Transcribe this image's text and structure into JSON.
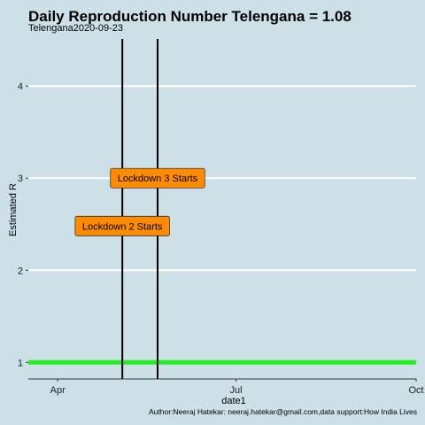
{
  "chart_data": {
    "type": "line",
    "title": "Daily Reproduction Number Telengana = 1.08",
    "subtitle": "Telengana2020-09-23",
    "xlabel": "date1",
    "ylabel": "Estimated R",
    "caption": "Author:Neeraj Hatekar: neeraj.hatekar@gmail.com,data support:How India Lives",
    "xlim": [
      "2020-03-17",
      "2020-10-01"
    ],
    "ylim": [
      0.82,
      4.55
    ],
    "x_ticks": [
      {
        "date": "2020-04-01",
        "label": "Apr"
      },
      {
        "date": "2020-07-01",
        "label": "Jul"
      },
      {
        "date": "2020-10-01",
        "label": "Oct"
      }
    ],
    "y_ticks": [
      1,
      2,
      3,
      4
    ],
    "grid": "horizontal",
    "series": [
      {
        "color": "#22ee22",
        "x": [
          "2020-03-17",
          "2020-10-01"
        ],
        "y": [
          1,
          1
        ]
      }
    ],
    "vlines": [
      {
        "date": "2020-05-04",
        "color": "#000000"
      },
      {
        "date": "2020-05-22",
        "color": "#000000"
      }
    ],
    "annotations": [
      {
        "text": "Lockdown 3 Starts",
        "date": "2020-05-22",
        "y": 3.0,
        "fill": "#ff8c00"
      },
      {
        "text": "Lockdown 2 Starts",
        "date": "2020-05-04",
        "y": 2.48,
        "fill": "#ff8c00"
      }
    ]
  }
}
